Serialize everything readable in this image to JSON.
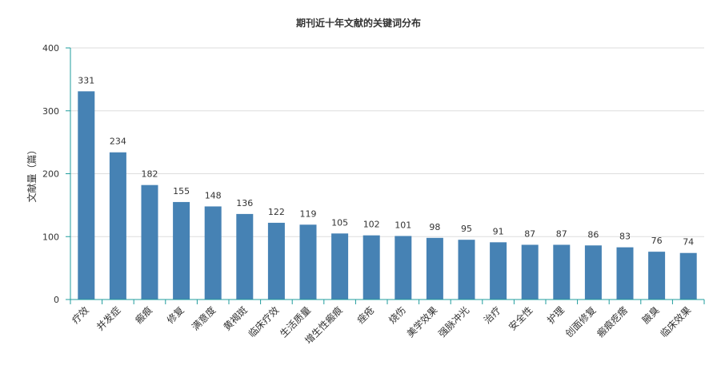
{
  "chart_data": {
    "type": "bar",
    "title": "期刊近十年文献的关键词分布",
    "ylabel": "文献量（篇）",
    "xlabel": "",
    "ylim": [
      0,
      400
    ],
    "yticks": [
      0,
      100,
      200,
      300,
      400
    ],
    "grid": true,
    "bar_color": "#4682b4",
    "axis_color": "#1f9c9c",
    "categories": [
      "疗效",
      "并发症",
      "瘢痕",
      "修复",
      "满意度",
      "黄褐斑",
      "临床疗效",
      "生活质量",
      "增生性瘢痕",
      "痤疮",
      "烧伤",
      "美学效果",
      "强脉冲光",
      "治疗",
      "安全性",
      "护理",
      "创面修复",
      "瘢痕疙瘩",
      "腋臭",
      "临床效果"
    ],
    "values": [
      331,
      234,
      182,
      155,
      148,
      136,
      122,
      119,
      105,
      102,
      101,
      98,
      95,
      91,
      87,
      87,
      86,
      83,
      76,
      74
    ]
  }
}
